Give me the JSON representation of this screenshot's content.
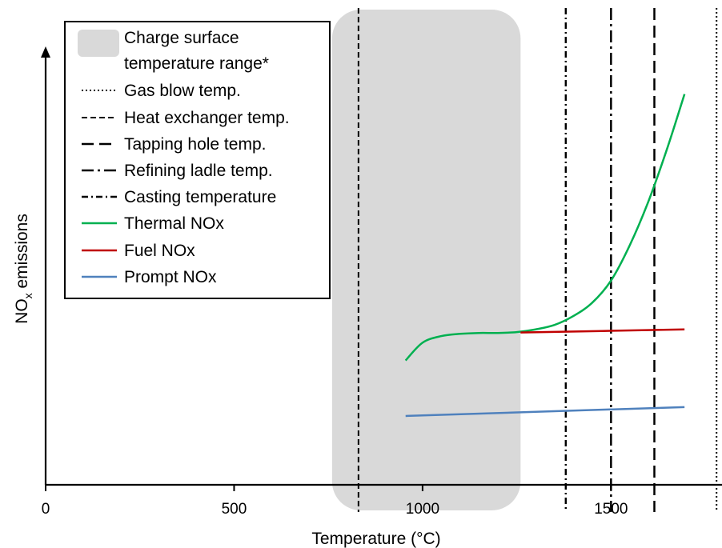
{
  "chart_data": {
    "type": "line",
    "title": "",
    "xlabel": "Temperature (°C)",
    "ylabel_main": "NO",
    "ylabel_sub": "x",
    "ylabel_rest": " emissions",
    "xlim": [
      0,
      1780
    ],
    "xticks": [
      0,
      500,
      1000,
      1500
    ],
    "yaxis_values_shown": false,
    "legend_position": "top-left",
    "band": {
      "name": "Charge surface temperature range*",
      "x_range": [
        760,
        1260
      ],
      "color": "#d9d9d9"
    },
    "vlines": [
      {
        "name": "Gas blow temp.",
        "x": 1780,
        "style": "dotted"
      },
      {
        "name": "Heat exchanger temp.",
        "x": 830,
        "style": "dashed"
      },
      {
        "name": "Tapping hole temp.",
        "x": 1615,
        "style": "long-dash"
      },
      {
        "name": "Refining ladle temp.",
        "x": 1500,
        "style": "long-dash-dot"
      },
      {
        "name": "Casting temperature",
        "x": 1380,
        "style": "dash-dot"
      }
    ],
    "series": [
      {
        "name": "Thermal NOx",
        "color": "#00b050",
        "x": [
          955,
          1000,
          1050,
          1100,
          1150,
          1200,
          1250,
          1300,
          1350,
          1400,
          1450,
          1500,
          1550,
          1600,
          1650,
          1695
        ],
        "y": [
          0.28,
          0.32,
          0.335,
          0.34,
          0.342,
          0.342,
          0.344,
          0.35,
          0.36,
          0.38,
          0.41,
          0.46,
          0.54,
          0.64,
          0.76,
          0.88
        ]
      },
      {
        "name": "Fuel NOx",
        "color": "#c00000",
        "x": [
          1260,
          1695
        ],
        "y": [
          0.343,
          0.35
        ]
      },
      {
        "name": "Prompt NOx",
        "color": "#4f81bd",
        "x": [
          955,
          1695
        ],
        "y": [
          0.155,
          0.175
        ]
      }
    ],
    "legend_entries": [
      {
        "label_lines": [
          "Charge surface",
          "temperature range*"
        ],
        "kind": "band"
      },
      {
        "label_lines": [
          "Gas blow temp."
        ],
        "kind": "dotted"
      },
      {
        "label_lines": [
          "Heat exchanger temp."
        ],
        "kind": "dashed"
      },
      {
        "label_lines": [
          "Tapping hole temp."
        ],
        "kind": "long-dash"
      },
      {
        "label_lines": [
          "Refining ladle temp."
        ],
        "kind": "long-dash-dot"
      },
      {
        "label_lines": [
          "Casting temperature"
        ],
        "kind": "dash-dot"
      },
      {
        "label_lines": [
          "Thermal NOx"
        ],
        "kind": "green"
      },
      {
        "label_lines": [
          "Fuel NOx"
        ],
        "kind": "red"
      },
      {
        "label_lines": [
          "Prompt NOx"
        ],
        "kind": "blue"
      }
    ]
  }
}
